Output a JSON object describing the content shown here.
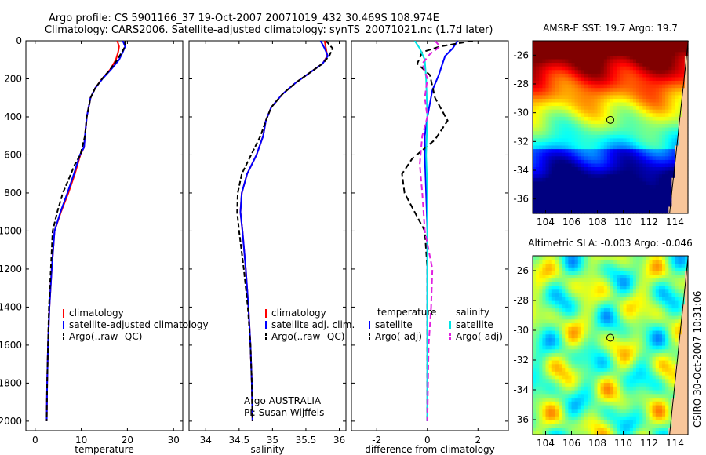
{
  "header": {
    "title_line1": "Argo profile: CS 5901166_37 19-Oct-2007 20071019_432 30.469S 108.974E",
    "title_line2": "Climatology: CARS2006. Satellite-adjusted climatology: synTS_20071021.nc (1.7d later)"
  },
  "credit": "CSIRO 30-Oct-2007 10:31:06",
  "colors": {
    "climatology": "#ff0000",
    "satellite": "#0000ff",
    "argo": "#000000",
    "satellite_salinity": "#00e5e5",
    "argo_salinity_adj": "#e020e0"
  },
  "chart_data": [
    {
      "id": "temperature",
      "type": "line",
      "xlabel": "temperature",
      "ylabel": "",
      "xlim": [
        -2,
        32
      ],
      "ylim": [
        2050,
        0
      ],
      "xticks": [
        0,
        10,
        20,
        30
      ],
      "yticks": [
        0,
        200,
        400,
        600,
        800,
        1000,
        1200,
        1400,
        1600,
        1800,
        2000
      ],
      "legend": [
        "climatology",
        "satellite-adjusted climatology",
        "Argo(..raw -QC)"
      ],
      "series": [
        {
          "name": "climatology",
          "color": "#ff0000",
          "dash": "",
          "points": [
            [
              17.8,
              0
            ],
            [
              18.2,
              30
            ],
            [
              18.0,
              60
            ],
            [
              17.5,
              100
            ],
            [
              16.3,
              150
            ],
            [
              14.5,
              200
            ],
            [
              13.0,
              250
            ],
            [
              12.0,
              300
            ],
            [
              11.2,
              400
            ],
            [
              10.8,
              500
            ],
            [
              10.6,
              560
            ],
            [
              9.8,
              600
            ],
            [
              8.6,
              700
            ],
            [
              7.2,
              800
            ],
            [
              5.6,
              900
            ],
            [
              4.2,
              1000
            ],
            [
              3.6,
              1200
            ],
            [
              3.1,
              1400
            ],
            [
              2.8,
              1600
            ],
            [
              2.6,
              1800
            ],
            [
              2.5,
              2000
            ]
          ]
        },
        {
          "name": "satellite-adjusted climatology",
          "color": "#0000ff",
          "dash": "",
          "points": [
            [
              19.0,
              0
            ],
            [
              19.5,
              30
            ],
            [
              19.0,
              60
            ],
            [
              18.2,
              100
            ],
            [
              16.5,
              150
            ],
            [
              14.6,
              200
            ],
            [
              13.0,
              250
            ],
            [
              12.0,
              300
            ],
            [
              11.2,
              400
            ],
            [
              10.8,
              500
            ],
            [
              10.6,
              560
            ],
            [
              9.7,
              600
            ],
            [
              8.4,
              700
            ],
            [
              7.0,
              800
            ],
            [
              5.5,
              900
            ],
            [
              4.2,
              1000
            ],
            [
              3.6,
              1200
            ],
            [
              3.1,
              1400
            ],
            [
              2.8,
              1600
            ],
            [
              2.6,
              1800
            ],
            [
              2.5,
              2000
            ]
          ]
        },
        {
          "name": "Argo(..raw -QC)",
          "color": "#000000",
          "dash": "6,3",
          "points": [
            [
              19.5,
              0
            ],
            [
              19.5,
              30
            ],
            [
              18.8,
              60
            ],
            [
              17.8,
              100
            ],
            [
              16.3,
              150
            ],
            [
              14.5,
              200
            ],
            [
              13.0,
              250
            ],
            [
              12.0,
              300
            ],
            [
              11.2,
              400
            ],
            [
              10.8,
              500
            ],
            [
              9.8,
              600
            ],
            [
              8.6,
              650
            ],
            [
              7.4,
              720
            ],
            [
              6.0,
              800
            ],
            [
              4.8,
              900
            ],
            [
              3.8,
              1000
            ],
            [
              3.4,
              1200
            ],
            [
              3.0,
              1400
            ],
            [
              2.8,
              1600
            ],
            [
              2.6,
              1800
            ],
            [
              2.5,
              2000
            ]
          ]
        }
      ]
    },
    {
      "id": "salinity",
      "type": "line",
      "xlabel": "salinity",
      "ylabel": "",
      "xlim": [
        33.75,
        36.1
      ],
      "ylim": [
        2050,
        0
      ],
      "xticks": [
        34,
        34.5,
        35,
        35.5,
        36
      ],
      "xticklabels": [
        "34",
        "34.5",
        "35",
        "35.5",
        "36"
      ],
      "legend": [
        "climatology",
        "satellite adj. clim.",
        "Argo(..raw -QC)"
      ],
      "annotations": [
        "Argo AUSTRALIA",
        "PI: Susan Wijffels"
      ],
      "series": [
        {
          "name": "climatology",
          "color": "#ff0000",
          "dash": "",
          "points": [
            [
              35.78,
              0
            ],
            [
              35.8,
              40
            ],
            [
              35.82,
              80
            ],
            [
              35.75,
              120
            ],
            [
              35.55,
              170
            ],
            [
              35.35,
              220
            ],
            [
              35.15,
              280
            ],
            [
              34.98,
              350
            ],
            [
              34.9,
              420
            ],
            [
              34.86,
              500
            ],
            [
              34.76,
              600
            ],
            [
              34.62,
              700
            ],
            [
              34.54,
              800
            ],
            [
              34.52,
              900
            ],
            [
              34.55,
              1000
            ],
            [
              34.6,
              1200
            ],
            [
              34.64,
              1400
            ],
            [
              34.67,
              1600
            ],
            [
              34.69,
              1800
            ],
            [
              34.7,
              2000
            ]
          ]
        },
        {
          "name": "satellite adj. clim.",
          "color": "#0000ff",
          "dash": "",
          "points": [
            [
              35.72,
              0
            ],
            [
              35.78,
              40
            ],
            [
              35.83,
              80
            ],
            [
              35.75,
              120
            ],
            [
              35.55,
              170
            ],
            [
              35.35,
              220
            ],
            [
              35.15,
              280
            ],
            [
              34.98,
              350
            ],
            [
              34.9,
              420
            ],
            [
              34.86,
              500
            ],
            [
              34.76,
              600
            ],
            [
              34.62,
              700
            ],
            [
              34.54,
              800
            ],
            [
              34.52,
              900
            ],
            [
              34.55,
              1000
            ],
            [
              34.6,
              1200
            ],
            [
              34.64,
              1400
            ],
            [
              34.67,
              1600
            ],
            [
              34.69,
              1800
            ],
            [
              34.7,
              2000
            ]
          ]
        },
        {
          "name": "Argo(..raw -QC)",
          "color": "#000000",
          "dash": "6,3",
          "points": [
            [
              35.8,
              0
            ],
            [
              35.9,
              40
            ],
            [
              35.85,
              80
            ],
            [
              35.75,
              120
            ],
            [
              35.55,
              170
            ],
            [
              35.35,
              220
            ],
            [
              35.15,
              280
            ],
            [
              34.98,
              350
            ],
            [
              34.9,
              420
            ],
            [
              34.82,
              500
            ],
            [
              34.68,
              600
            ],
            [
              34.54,
              700
            ],
            [
              34.48,
              800
            ],
            [
              34.47,
              900
            ],
            [
              34.5,
              1000
            ],
            [
              34.57,
              1200
            ],
            [
              34.63,
              1400
            ],
            [
              34.67,
              1600
            ],
            [
              34.69,
              1800
            ],
            [
              34.7,
              2000
            ]
          ]
        }
      ]
    },
    {
      "id": "difference",
      "type": "line",
      "xlabel": "difference from climatology",
      "ylabel": "",
      "xlim": [
        -3,
        3.2
      ],
      "ylim": [
        2050,
        0
      ],
      "xticks": [
        -2,
        0,
        2
      ],
      "legend_headers": [
        "temperature",
        "salinity"
      ],
      "legend": [
        "satellite",
        "Argo(-adj)",
        "satellite",
        "Argo(-adj)"
      ],
      "series": [
        {
          "name": "temperature satellite",
          "color": "#0000ff",
          "dash": "",
          "points": [
            [
              1.2,
              0
            ],
            [
              1.0,
              40
            ],
            [
              0.7,
              80
            ],
            [
              0.6,
              120
            ],
            [
              0.45,
              180
            ],
            [
              0.2,
              260
            ],
            [
              0.0,
              400
            ],
            [
              -0.1,
              500
            ],
            [
              -0.1,
              600
            ],
            [
              -0.05,
              800
            ],
            [
              0.0,
              1000
            ],
            [
              0.0,
              1500
            ],
            [
              0.0,
              2000
            ]
          ]
        },
        {
          "name": "temperature Argo(-adj)",
          "color": "#000000",
          "dash": "7,4",
          "points": [
            [
              1.8,
              0
            ],
            [
              0.5,
              30
            ],
            [
              -0.2,
              60
            ],
            [
              -0.4,
              120
            ],
            [
              0.1,
              180
            ],
            [
              0.3,
              300
            ],
            [
              0.8,
              420
            ],
            [
              0.3,
              520
            ],
            [
              -0.6,
              620
            ],
            [
              -1.0,
              700
            ],
            [
              -0.9,
              800
            ],
            [
              -0.5,
              900
            ],
            [
              -0.1,
              1000
            ],
            [
              0.0,
              1200
            ],
            [
              0.0,
              2000
            ]
          ]
        },
        {
          "name": "salinity satellite",
          "color": "#00e5e5",
          "dash": "",
          "points": [
            [
              -0.5,
              0
            ],
            [
              -0.3,
              40
            ],
            [
              -0.1,
              100
            ],
            [
              -0.05,
              200
            ],
            [
              0.0,
              400
            ],
            [
              -0.05,
              600
            ],
            [
              0.0,
              800
            ],
            [
              0.0,
              1200
            ],
            [
              0.0,
              2000
            ]
          ]
        },
        {
          "name": "salinity Argo(-adj)",
          "color": "#e020e0",
          "dash": "7,4",
          "points": [
            [
              0.3,
              0
            ],
            [
              0.5,
              30
            ],
            [
              0.1,
              70
            ],
            [
              -0.2,
              120
            ],
            [
              0.0,
              200
            ],
            [
              -0.1,
              300
            ],
            [
              0.0,
              400
            ],
            [
              -0.2,
              500
            ],
            [
              -0.3,
              650
            ],
            [
              -0.2,
              800
            ],
            [
              -0.1,
              1000
            ],
            [
              0.05,
              1100
            ],
            [
              0.2,
              1200
            ],
            [
              0.15,
              1400
            ],
            [
              0.05,
              1600
            ],
            [
              0.0,
              2000
            ]
          ]
        }
      ]
    }
  ],
  "maps": [
    {
      "title": "AMSR-E SST: 19.7 Argo: 19.7",
      "type": "heatmap",
      "xlim": [
        103,
        115
      ],
      "ylim": [
        -37,
        -25
      ],
      "xticks": [
        104,
        106,
        108,
        110,
        112,
        114
      ],
      "yticks": [
        -26,
        -28,
        -30,
        -32,
        -34,
        -36
      ],
      "marker": {
        "lon": 109.0,
        "lat": -30.5
      },
      "colormap": "jet"
    },
    {
      "title": "Altimetric SLA: -0.003 Argo: -0.046",
      "type": "heatmap",
      "xlim": [
        103,
        115
      ],
      "ylim": [
        -37,
        -25
      ],
      "xticks": [
        104,
        106,
        108,
        110,
        112,
        114
      ],
      "yticks": [
        -26,
        -28,
        -30,
        -32,
        -34,
        -36
      ],
      "marker": {
        "lon": 109.0,
        "lat": -30.5
      },
      "colormap": "jet"
    }
  ]
}
